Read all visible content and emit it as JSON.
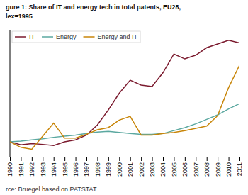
{
  "chart_data": {
    "type": "line",
    "title": "gure 1: Share of IT and energy tech in total patents, EU28,",
    "subtitle": "lex=1995",
    "annotations": [
      "rce: Bruegel based on PATSTAT."
    ],
    "x": [
      1990,
      1991,
      1992,
      1993,
      1994,
      1995,
      1996,
      1997,
      1998,
      1999,
      2000,
      2001,
      2002,
      2003,
      2004,
      2005,
      2006,
      2007,
      2008,
      2009,
      2010,
      2011
    ],
    "series": [
      {
        "name": "IT",
        "color": "#7b1a2e",
        "values": [
          1.0,
          0.92,
          0.95,
          0.93,
          0.9,
          1.0,
          1.05,
          1.18,
          1.45,
          1.85,
          2.3,
          2.65,
          2.52,
          2.48,
          2.85,
          3.35,
          3.22,
          3.32,
          3.52,
          3.62,
          3.72,
          3.65
        ]
      },
      {
        "name": "Energy",
        "color": "#5ba8a0",
        "values": [
          1.0,
          1.02,
          1.05,
          1.08,
          1.12,
          1.15,
          1.18,
          1.22,
          1.26,
          1.28,
          1.25,
          1.22,
          1.2,
          1.2,
          1.22,
          1.3,
          1.38,
          1.48,
          1.6,
          1.72,
          1.88,
          2.02
        ]
      },
      {
        "name": "Energy and IT",
        "color": "#c8860a",
        "values": [
          1.0,
          0.85,
          0.8,
          1.15,
          1.5,
          1.1,
          1.1,
          1.2,
          1.32,
          1.38,
          1.58,
          1.68,
          1.18,
          1.18,
          1.22,
          1.25,
          1.3,
          1.36,
          1.42,
          1.7,
          2.45,
          3.05
        ]
      }
    ],
    "xlim": [
      1990,
      2011
    ],
    "xticks": [
      1990,
      1991,
      1992,
      1993,
      1994,
      1995,
      1996,
      1997,
      1998,
      1999,
      2000,
      2001,
      2002,
      2003,
      2004,
      2005,
      2006,
      2007,
      2008,
      2009,
      2010,
      2011
    ],
    "ylim": [
      0.6,
      4.0
    ],
    "tick_labels": "x",
    "legend": "upper left",
    "grid": false
  }
}
